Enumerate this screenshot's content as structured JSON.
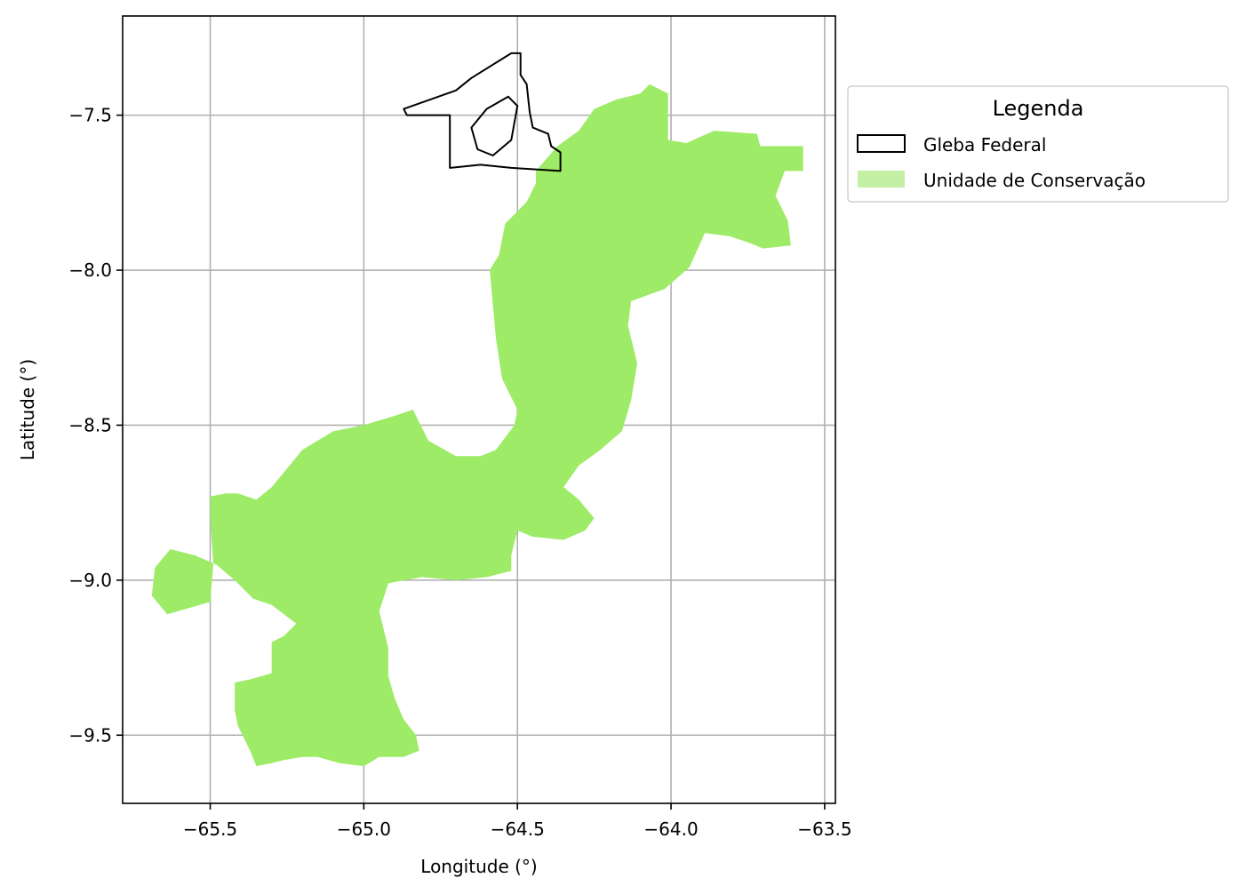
{
  "map": {
    "xlabel": "Longitude (°)",
    "ylabel": "Latitude (°)",
    "xlim": [
      -65.785,
      -63.465
    ],
    "ylim": [
      -9.72,
      -7.18
    ],
    "grid": true,
    "grid_color": "#b0b0b0",
    "x_ticks": [
      {
        "value": -65.5,
        "label": "−65.5"
      },
      {
        "value": -65.0,
        "label": "−65.0"
      },
      {
        "value": -64.5,
        "label": "−64.5"
      },
      {
        "value": -64.0,
        "label": "−64.0"
      },
      {
        "value": -63.5,
        "label": "−63.5"
      }
    ],
    "y_ticks": [
      {
        "value": -7.5,
        "label": "−7.5"
      },
      {
        "value": -8.0,
        "label": "−8.0"
      },
      {
        "value": -8.5,
        "label": "−8.5"
      },
      {
        "value": -9.0,
        "label": "−9.0"
      },
      {
        "value": -9.5,
        "label": "−9.5"
      }
    ]
  },
  "legend": {
    "title": "Legenda",
    "placement": "outside-upper-right",
    "items": [
      {
        "label": "Gleba Federal",
        "kind": "outline",
        "color": "#000000"
      },
      {
        "label": "Unidade de Conservação",
        "kind": "fill",
        "color": "#c4f0a6"
      }
    ]
  },
  "layers": {
    "conservation_unit": {
      "fill_color": "#9deb66",
      "polygons": [
        [
          [
            -64.07,
            -7.4
          ],
          [
            -64.01,
            -7.43
          ],
          [
            -64.01,
            -7.58
          ],
          [
            -63.95,
            -7.59
          ],
          [
            -63.86,
            -7.55
          ],
          [
            -63.72,
            -7.56
          ],
          [
            -63.71,
            -7.6
          ],
          [
            -63.57,
            -7.6
          ],
          [
            -63.57,
            -7.68
          ],
          [
            -63.63,
            -7.68
          ],
          [
            -63.66,
            -7.76
          ],
          [
            -63.62,
            -7.84
          ],
          [
            -63.61,
            -7.92
          ],
          [
            -63.7,
            -7.93
          ],
          [
            -63.75,
            -7.91
          ],
          [
            -63.81,
            -7.89
          ],
          [
            -63.89,
            -7.88
          ],
          [
            -63.94,
            -7.99
          ],
          [
            -64.02,
            -8.06
          ],
          [
            -64.13,
            -8.1
          ],
          [
            -64.14,
            -8.18
          ],
          [
            -64.11,
            -8.3
          ],
          [
            -64.13,
            -8.42
          ],
          [
            -64.16,
            -8.52
          ],
          [
            -64.23,
            -8.58
          ],
          [
            -64.3,
            -8.63
          ],
          [
            -64.35,
            -8.7
          ],
          [
            -64.3,
            -8.74
          ],
          [
            -64.25,
            -8.8
          ],
          [
            -64.28,
            -8.84
          ],
          [
            -64.35,
            -8.87
          ],
          [
            -64.45,
            -8.86
          ],
          [
            -64.5,
            -8.84
          ],
          [
            -64.52,
            -8.92
          ],
          [
            -64.52,
            -8.97
          ],
          [
            -64.6,
            -8.99
          ],
          [
            -64.7,
            -9.0
          ],
          [
            -64.81,
            -8.99
          ],
          [
            -64.92,
            -9.01
          ],
          [
            -64.95,
            -9.1
          ],
          [
            -64.92,
            -9.22
          ],
          [
            -64.92,
            -9.31
          ],
          [
            -64.9,
            -9.38
          ],
          [
            -64.87,
            -9.45
          ],
          [
            -64.83,
            -9.5
          ],
          [
            -64.82,
            -9.55
          ],
          [
            -64.87,
            -9.57
          ],
          [
            -64.95,
            -9.57
          ],
          [
            -65.0,
            -9.6
          ],
          [
            -65.08,
            -9.59
          ],
          [
            -65.15,
            -9.57
          ],
          [
            -65.2,
            -9.57
          ],
          [
            -65.26,
            -9.58
          ],
          [
            -65.3,
            -9.59
          ],
          [
            -65.35,
            -9.6
          ],
          [
            -65.37,
            -9.55
          ],
          [
            -65.41,
            -9.47
          ],
          [
            -65.42,
            -9.42
          ],
          [
            -65.42,
            -9.33
          ],
          [
            -65.37,
            -9.32
          ],
          [
            -65.3,
            -9.3
          ],
          [
            -65.3,
            -9.2
          ],
          [
            -65.26,
            -9.18
          ],
          [
            -65.22,
            -9.14
          ],
          [
            -65.3,
            -9.08
          ],
          [
            -65.36,
            -9.06
          ],
          [
            -65.42,
            -9.0
          ],
          [
            -65.48,
            -8.95
          ],
          [
            -65.55,
            -8.92
          ],
          [
            -65.63,
            -8.9
          ],
          [
            -65.68,
            -8.96
          ],
          [
            -65.69,
            -9.05
          ],
          [
            -65.64,
            -9.11
          ],
          [
            -65.5,
            -9.07
          ],
          [
            -65.49,
            -8.95
          ],
          [
            -65.5,
            -8.8
          ],
          [
            -65.5,
            -8.73
          ],
          [
            -65.45,
            -8.72
          ],
          [
            -65.41,
            -8.72
          ],
          [
            -65.35,
            -8.74
          ],
          [
            -65.3,
            -8.7
          ],
          [
            -65.2,
            -8.58
          ],
          [
            -65.1,
            -8.52
          ],
          [
            -65.0,
            -8.5
          ],
          [
            -64.9,
            -8.47
          ],
          [
            -64.84,
            -8.45
          ],
          [
            -64.79,
            -8.55
          ],
          [
            -64.7,
            -8.6
          ],
          [
            -64.62,
            -8.6
          ],
          [
            -64.57,
            -8.58
          ],
          [
            -64.51,
            -8.5
          ],
          [
            -64.5,
            -8.45
          ],
          [
            -64.55,
            -8.35
          ],
          [
            -64.57,
            -8.22
          ],
          [
            -64.59,
            -8.0
          ],
          [
            -64.56,
            -7.95
          ],
          [
            -64.54,
            -7.85
          ],
          [
            -64.47,
            -7.78
          ],
          [
            -64.44,
            -7.72
          ],
          [
            -64.44,
            -7.68
          ],
          [
            -64.37,
            -7.6
          ],
          [
            -64.3,
            -7.55
          ],
          [
            -64.25,
            -7.48
          ],
          [
            -64.18,
            -7.45
          ],
          [
            -64.1,
            -7.43
          ]
        ]
      ]
    },
    "federal_land": {
      "stroke_color": "#000000",
      "polygons": [
        [
          [
            -64.87,
            -7.48
          ],
          [
            -64.7,
            -7.42
          ],
          [
            -64.65,
            -7.38
          ],
          [
            -64.52,
            -7.3
          ],
          [
            -64.49,
            -7.3
          ],
          [
            -64.49,
            -7.37
          ],
          [
            -64.47,
            -7.4
          ],
          [
            -64.46,
            -7.49
          ],
          [
            -64.45,
            -7.54
          ],
          [
            -64.4,
            -7.56
          ],
          [
            -64.39,
            -7.6
          ],
          [
            -64.36,
            -7.62
          ],
          [
            -64.36,
            -7.68
          ],
          [
            -64.52,
            -7.67
          ],
          [
            -64.62,
            -7.66
          ],
          [
            -64.72,
            -7.67
          ],
          [
            -64.72,
            -7.5
          ],
          [
            -64.86,
            -7.5
          ]
        ],
        [
          [
            -64.65,
            -7.54
          ],
          [
            -64.6,
            -7.48
          ],
          [
            -64.53,
            -7.44
          ],
          [
            -64.5,
            -7.47
          ],
          [
            -64.52,
            -7.58
          ],
          [
            -64.58,
            -7.63
          ],
          [
            -64.63,
            -7.61
          ]
        ]
      ]
    }
  }
}
